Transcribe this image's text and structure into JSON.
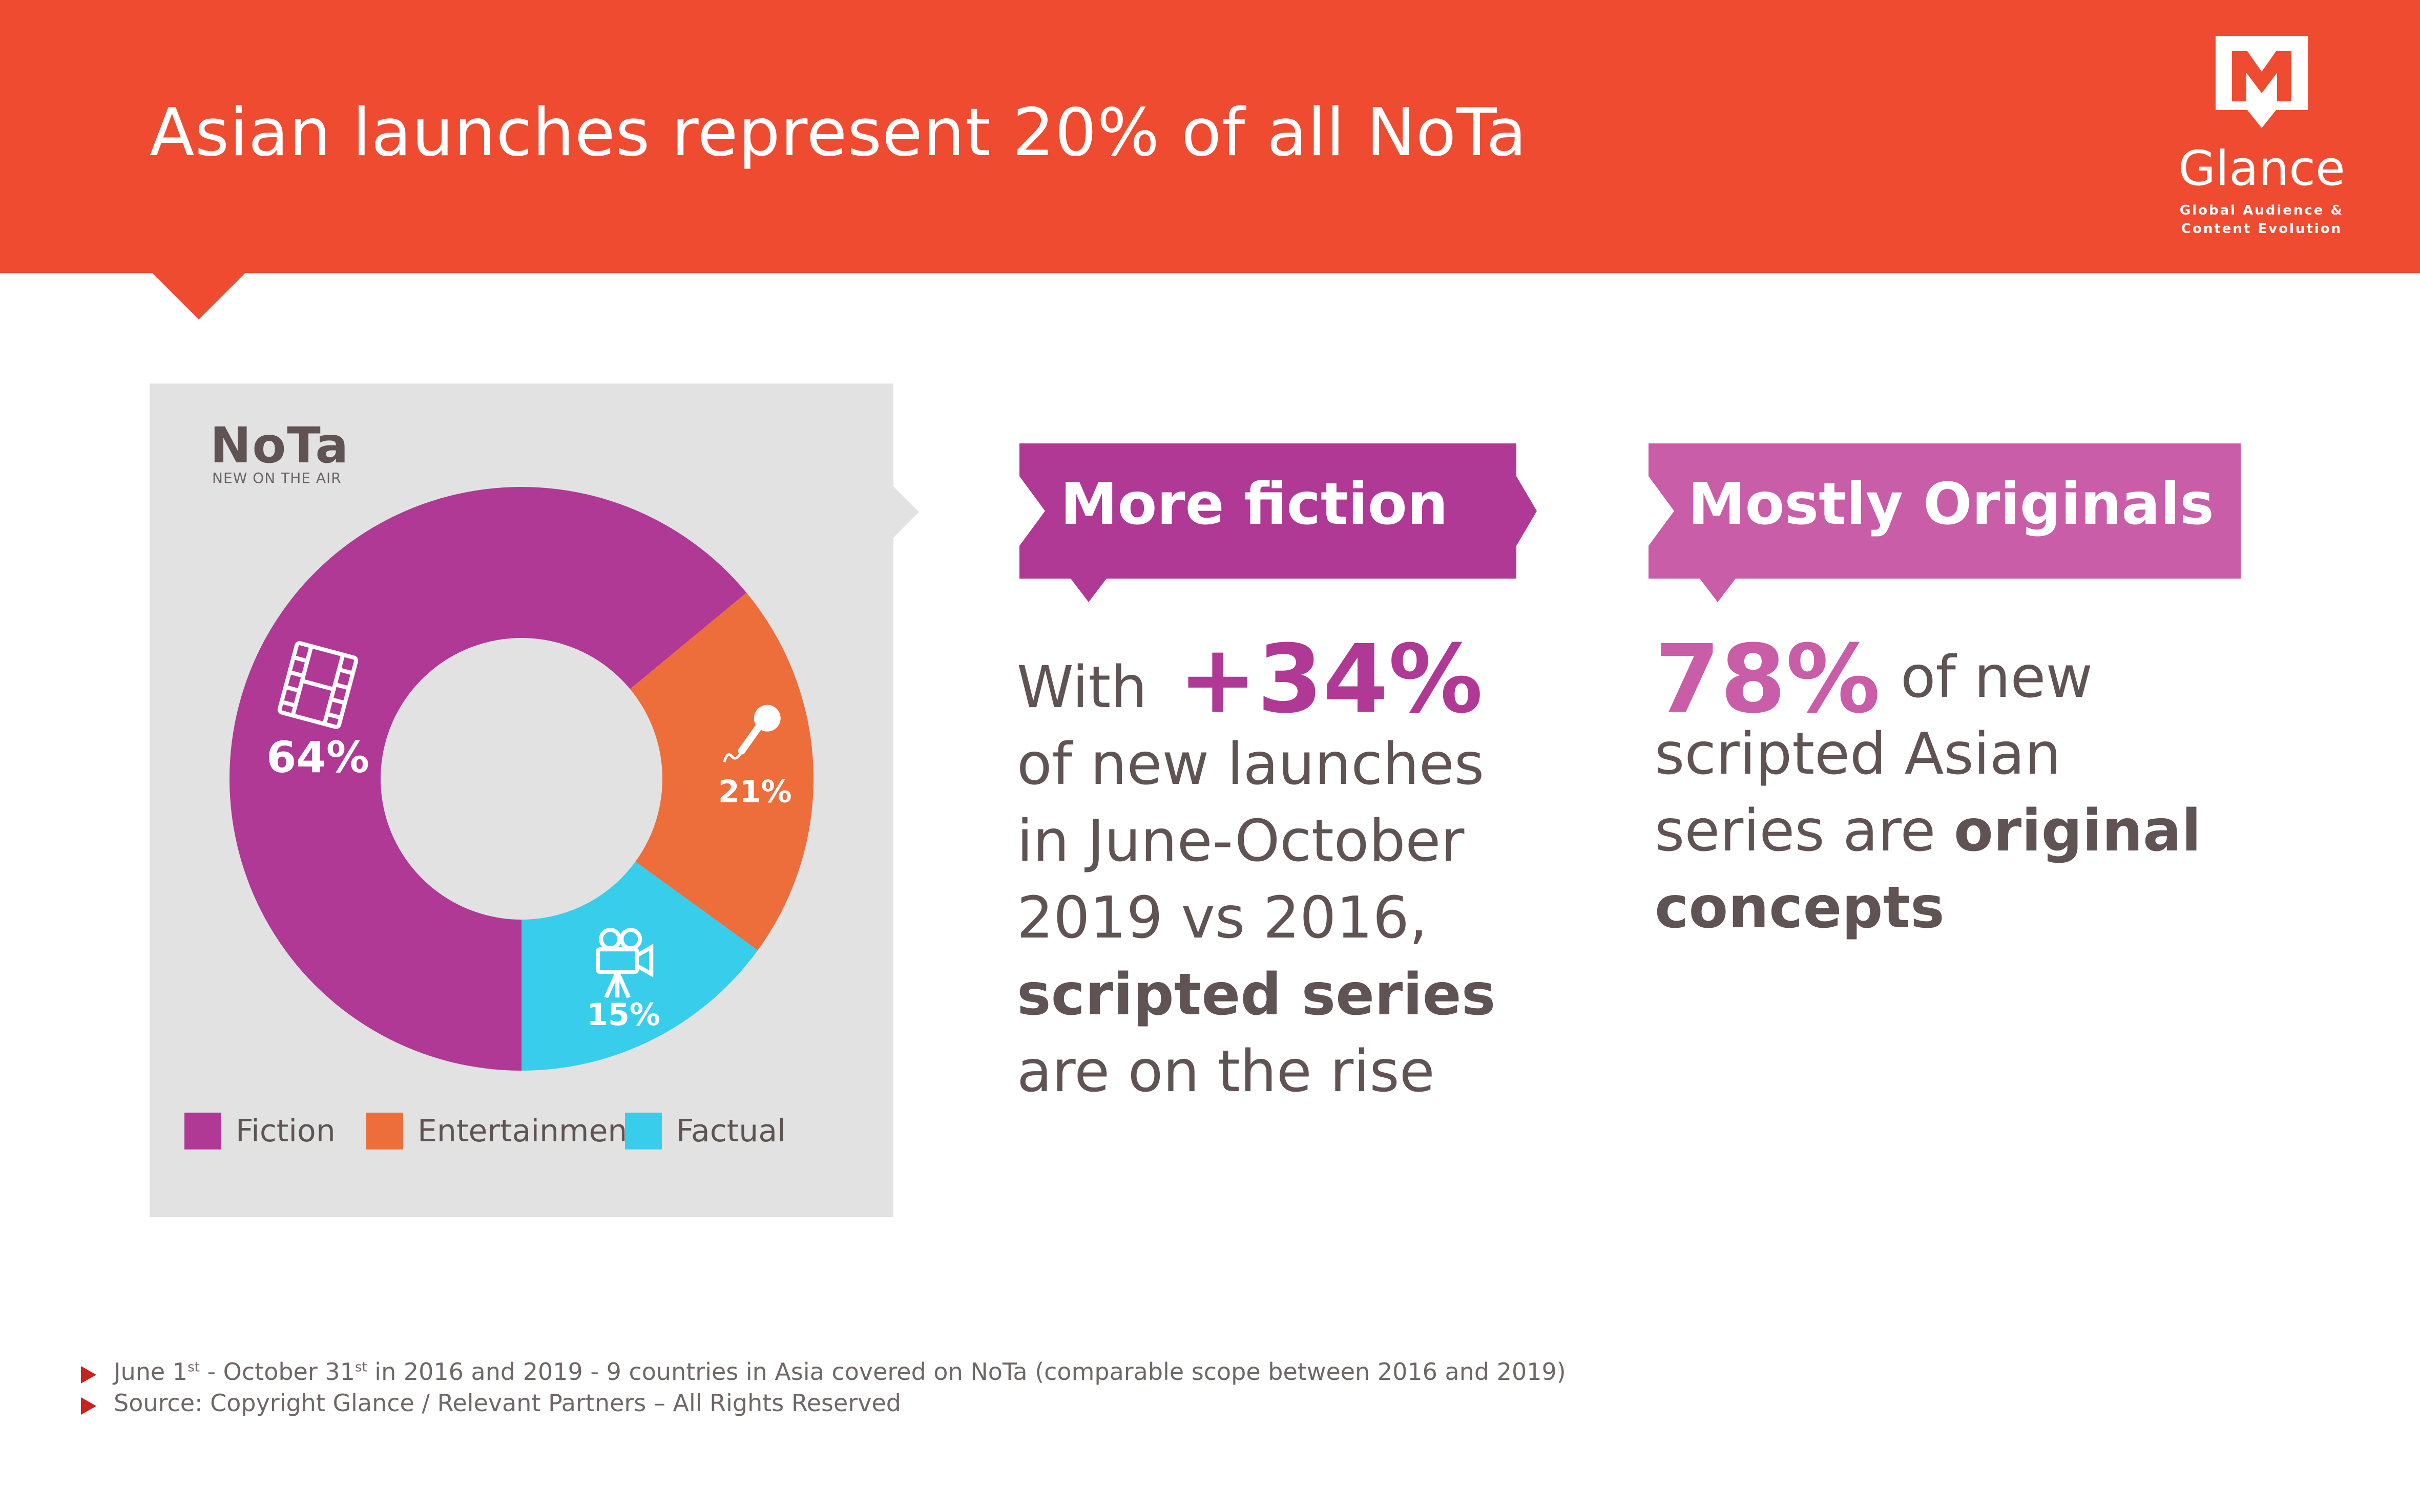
{
  "header": {
    "title": "Asian launches represent 20% of all NoTa",
    "background_color": "#ef4b31"
  },
  "logo": {
    "name": "Glance",
    "tagline_line1": "Global Audience &",
    "tagline_line2": "Content Evolution"
  },
  "chart_panel": {
    "title": "NoTa",
    "subtitle": "NEW ON THE AIR"
  },
  "chart_data": {
    "type": "pie",
    "donut": true,
    "categories": [
      "Fiction",
      "Entertainment",
      "Factual"
    ],
    "values": [
      64,
      21,
      15
    ],
    "value_labels": [
      "64%",
      "21%",
      "15%"
    ],
    "colors": [
      "#af3994",
      "#ed6d3b",
      "#38cdea"
    ],
    "segment_icons": [
      "film-strip-icon",
      "microphone-icon",
      "movie-camera-icon"
    ],
    "legend": [
      "Fiction",
      "Entertainment",
      "Factual"
    ],
    "legend_placement": "bottom"
  },
  "ribbons": [
    {
      "label": "More fiction",
      "color": "#af3994"
    },
    {
      "label": "Mostly Originals",
      "color": "#c95da8"
    }
  ],
  "text1": {
    "prefix": "With",
    "stat": "+34%",
    "line2": "of new launches",
    "line3": "in June-October",
    "line4": "2019 vs 2016,",
    "line5_bold": "scripted series",
    "line6": "are on the rise"
  },
  "text2": {
    "stat": "78%",
    "suffix": "of new",
    "line2": "scripted Asian",
    "line3_prefix": "series are",
    "line3_bold": "original",
    "line4_bold": "concepts"
  },
  "footnotes": {
    "line1_a": "June 1",
    "line1_sup1": "st",
    "line1_b": " - October 31",
    "line1_sup2": "st",
    "line1_c": " in 2016 and 2019 - 9 countries in Asia covered on NoTa (comparable scope between 2016 and 2019)",
    "line2": "Source: Copyright Glance / Relevant Partners – All Rights Reserved"
  }
}
